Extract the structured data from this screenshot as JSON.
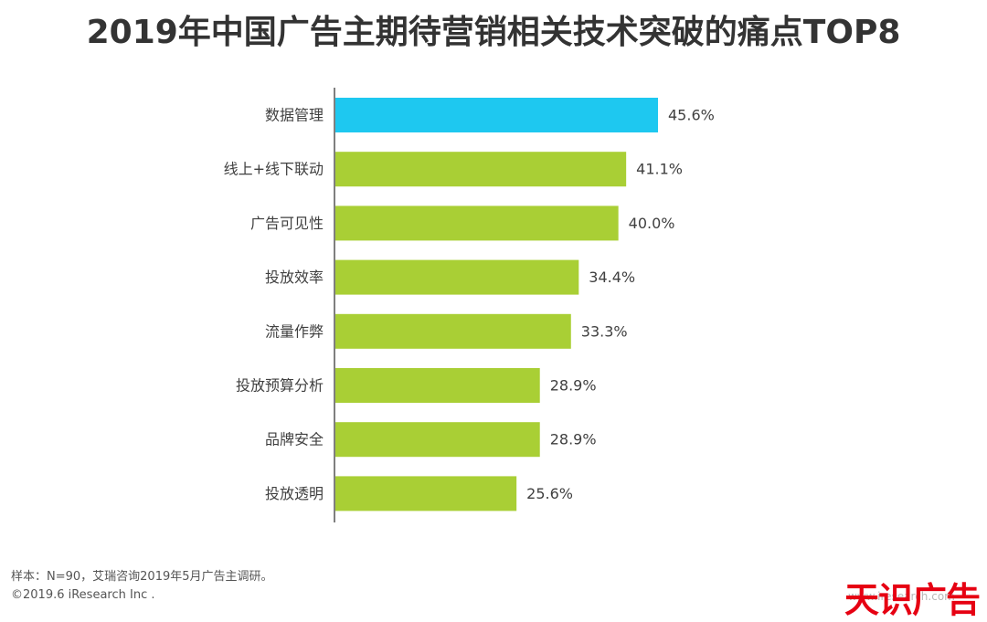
{
  "title": "2019年中国广告主期待营销相关技术突破的痛点TOP8",
  "chart_data": {
    "type": "bar",
    "orientation": "horizontal",
    "title": "2019年中国广告主期待营销相关技术突破的痛点TOP8",
    "categories": [
      "数据管理",
      "线上+线下联动",
      "广告可见性",
      "投放效率",
      "流量作弊",
      "投放预算分析",
      "品牌安全",
      "投放透明"
    ],
    "values": [
      45.6,
      41.1,
      40.0,
      34.4,
      33.3,
      28.9,
      28.9,
      25.6
    ],
    "value_labels": [
      "45.6%",
      "41.1%",
      "40.0%",
      "34.4%",
      "33.3%",
      "28.9%",
      "28.9%",
      "25.6%"
    ],
    "unit": "%",
    "xlim": [
      0,
      50
    ],
    "grid": false,
    "legend": "none",
    "colors": {
      "highlight": "#1ec8f0",
      "default": "#a9cf35"
    },
    "highlight_index": 0
  },
  "footer": {
    "note": "样本：N=90，艾瑞咨询2019年5月广告主调研。",
    "copyright": "©2019.6 iResearch Inc ."
  },
  "watermark": {
    "logo_text": "天识广告",
    "url_text": "www.iresearch.com"
  }
}
